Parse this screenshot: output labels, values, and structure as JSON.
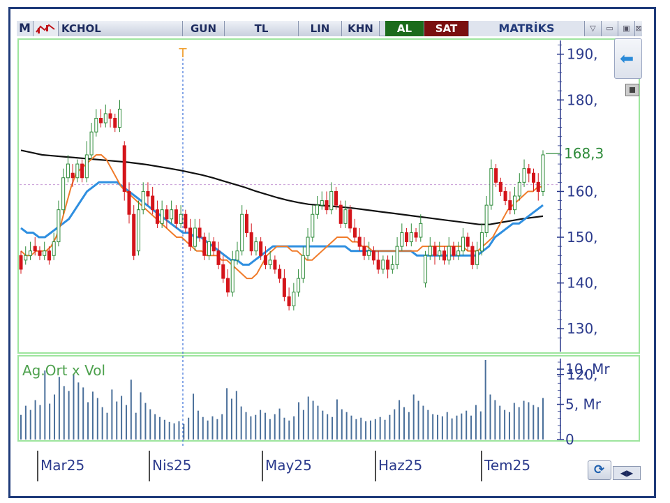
{
  "toolbar": {
    "menu": "M",
    "symbol": "KCHOL",
    "period": "GUN",
    "currency": "TL",
    "scale": "LIN",
    "khn": "KHN",
    "buy": "AL",
    "sell": "SAT",
    "brand": "MATRİKS",
    "win_dropdown": "▽",
    "win_min": "▭",
    "win_max": "▣",
    "win_close": "⊠"
  },
  "colors": {
    "up": "#2e8b3a",
    "down": "#d4141a",
    "ma_short": "#f07b2a",
    "ma_mid": "#2f8fe0",
    "ma_long": "#111111",
    "volume": "#4a6f9a",
    "axis": "#2b3a8c",
    "grid_frame": "#9ee59e",
    "last_price": "#2e8b3a",
    "marker": "#f0a030"
  },
  "icons": {
    "back": "arrow-left-icon",
    "refresh": "refresh-icon",
    "nav": "nav-arrows-icon"
  },
  "chart_data": [
    {
      "type": "candlestick",
      "symbol": "KCHOL",
      "ylim": [
        125,
        193
      ],
      "y_ticks": [
        "190,",
        "180,",
        "160,",
        "150,",
        "140,",
        "130,",
        "120,"
      ],
      "last_price_label": "168,3",
      "last_price": 168.3,
      "reference_price": 161.5,
      "marker_label": "T",
      "x_labels": [
        "Mar25",
        "Nis25",
        "May25",
        "Haz25",
        "Tem25"
      ],
      "candles": [
        [
          146,
          143,
          147,
          142
        ],
        [
          145,
          146,
          148,
          144
        ],
        [
          146,
          147,
          149,
          145
        ],
        [
          148,
          147,
          150,
          146
        ],
        [
          147,
          146,
          148,
          145
        ],
        [
          146,
          147,
          149,
          145
        ],
        [
          147,
          145,
          148,
          144
        ],
        [
          146,
          149,
          151,
          145
        ],
        [
          149,
          156,
          158,
          148
        ],
        [
          156,
          163,
          165,
          155
        ],
        [
          163,
          166,
          168,
          162
        ],
        [
          164,
          163,
          166,
          161
        ],
        [
          163,
          166,
          167,
          162
        ],
        [
          166,
          163,
          167,
          162
        ],
        [
          163,
          168,
          171,
          162
        ],
        [
          168,
          173,
          175,
          167
        ],
        [
          173,
          176,
          178,
          172
        ],
        [
          176,
          175,
          178,
          174
        ],
        [
          175,
          177,
          179,
          174
        ],
        [
          177,
          176,
          178,
          174
        ],
        [
          176,
          174,
          177,
          173
        ],
        [
          174,
          178,
          180,
          173
        ],
        [
          170,
          160,
          171,
          158
        ],
        [
          160,
          155,
          162,
          153
        ],
        [
          155,
          146,
          157,
          145
        ],
        [
          147,
          156,
          158,
          146
        ],
        [
          156,
          160,
          162,
          155
        ],
        [
          160,
          159,
          162,
          157
        ],
        [
          159,
          156,
          161,
          155
        ],
        [
          156,
          153,
          158,
          152
        ],
        [
          153,
          156,
          158,
          152
        ],
        [
          156,
          154,
          157,
          152
        ],
        [
          154,
          156,
          158,
          153
        ],
        [
          156,
          153,
          157,
          152
        ],
        [
          153,
          155,
          157,
          152
        ],
        [
          155,
          152,
          156,
          151
        ],
        [
          152,
          148,
          154,
          147
        ],
        [
          148,
          152,
          154,
          147
        ],
        [
          152,
          150,
          154,
          149
        ],
        [
          150,
          146,
          151,
          145
        ],
        [
          146,
          149,
          151,
          145
        ],
        [
          149,
          147,
          150,
          146
        ],
        [
          147,
          144,
          149,
          143
        ],
        [
          144,
          141,
          146,
          140
        ],
        [
          141,
          138,
          143,
          137
        ],
        [
          138,
          145,
          147,
          137
        ],
        [
          145,
          147,
          149,
          144
        ],
        [
          147,
          155,
          157,
          146
        ],
        [
          155,
          151,
          156,
          150
        ],
        [
          151,
          147,
          153,
          146
        ],
        [
          147,
          149,
          150,
          146
        ],
        [
          149,
          146,
          150,
          145
        ],
        [
          146,
          144,
          148,
          143
        ],
        [
          144,
          145,
          147,
          143
        ],
        [
          145,
          143,
          146,
          142
        ],
        [
          143,
          141,
          144,
          140
        ],
        [
          141,
          137,
          143,
          136
        ],
        [
          137,
          135,
          139,
          134
        ],
        [
          135,
          138,
          140,
          134
        ],
        [
          138,
          141,
          143,
          137
        ],
        [
          141,
          146,
          148,
          140
        ],
        [
          146,
          150,
          152,
          145
        ],
        [
          150,
          155,
          157,
          149
        ],
        [
          155,
          157,
          159,
          154
        ],
        [
          157,
          158,
          160,
          156
        ],
        [
          158,
          156,
          160,
          155
        ],
        [
          156,
          160,
          162,
          155
        ],
        [
          160,
          157,
          161,
          156
        ],
        [
          157,
          153,
          158,
          152
        ],
        [
          153,
          156,
          158,
          152
        ],
        [
          156,
          152,
          157,
          151
        ],
        [
          152,
          150,
          154,
          149
        ],
        [
          150,
          148,
          152,
          147
        ],
        [
          148,
          146,
          150,
          145
        ],
        [
          146,
          147,
          149,
          145
        ],
        [
          147,
          145,
          148,
          144
        ],
        [
          145,
          143,
          147,
          142
        ],
        [
          143,
          145,
          146,
          142
        ],
        [
          145,
          143,
          146,
          141
        ],
        [
          143,
          144,
          146,
          142
        ],
        [
          144,
          148,
          150,
          143
        ],
        [
          148,
          151,
          153,
          147
        ],
        [
          151,
          149,
          152,
          148
        ],
        [
          149,
          151,
          153,
          148
        ],
        [
          151,
          150,
          152,
          149
        ],
        [
          150,
          153,
          155,
          149
        ],
        [
          140,
          146,
          147,
          139
        ],
        [
          146,
          148,
          150,
          145
        ],
        [
          148,
          146,
          149,
          144
        ],
        [
          146,
          147,
          149,
          145
        ],
        [
          147,
          145,
          148,
          144
        ],
        [
          145,
          148,
          150,
          144
        ],
        [
          148,
          146,
          149,
          145
        ],
        [
          146,
          147,
          149,
          145
        ],
        [
          147,
          150,
          152,
          146
        ],
        [
          150,
          148,
          151,
          147
        ],
        [
          148,
          144,
          149,
          143
        ],
        [
          144,
          147,
          149,
          143
        ],
        [
          147,
          151,
          153,
          146
        ],
        [
          151,
          157,
          159,
          150
        ],
        [
          157,
          165,
          167,
          156
        ],
        [
          165,
          162,
          166,
          161
        ],
        [
          162,
          160,
          163,
          159
        ],
        [
          160,
          158,
          161,
          157
        ],
        [
          158,
          156,
          160,
          155
        ],
        [
          156,
          159,
          161,
          155
        ],
        [
          159,
          162,
          164,
          158
        ],
        [
          162,
          165,
          167,
          161
        ],
        [
          165,
          164,
          166,
          162
        ],
        [
          164,
          162,
          165,
          160
        ],
        [
          162,
          160,
          164,
          158
        ],
        [
          160,
          168,
          169,
          159
        ]
      ],
      "ma_short": [
        147,
        146,
        146,
        147,
        147,
        147,
        148,
        150,
        153,
        157,
        161,
        164,
        165,
        166,
        167,
        168,
        168,
        167,
        165,
        163,
        161,
        160,
        159,
        158,
        157,
        156,
        155,
        154,
        153,
        152,
        151,
        150,
        150,
        149,
        148,
        147,
        147,
        146,
        146,
        146,
        145,
        145,
        144,
        143,
        142,
        141,
        141,
        142,
        144,
        146,
        147,
        148,
        148,
        148,
        147,
        147,
        146,
        145,
        145,
        146,
        147,
        148,
        149,
        150,
        150,
        150,
        149,
        149,
        148,
        148,
        147,
        147,
        147,
        147,
        147,
        147,
        147,
        147,
        147,
        147,
        148,
        148,
        148,
        148,
        148,
        148,
        148,
        148,
        148,
        147,
        147,
        147,
        148,
        149,
        150,
        152,
        154,
        156,
        157,
        158,
        159,
        160,
        160,
        161,
        161
      ],
      "ma_mid": [
        152,
        151,
        151,
        150,
        150,
        151,
        152,
        153,
        154,
        156,
        158,
        160,
        161,
        162,
        162,
        162,
        162,
        161,
        160,
        159,
        158,
        157,
        156,
        155,
        154,
        153,
        152,
        151,
        151,
        150,
        150,
        149,
        148,
        147,
        146,
        145,
        145,
        144,
        144,
        145,
        146,
        147,
        148,
        148,
        148,
        148,
        148,
        148,
        148,
        148,
        148,
        148,
        148,
        148,
        148,
        147,
        147,
        147,
        147,
        147,
        147,
        147,
        147,
        147,
        147,
        147,
        146,
        146,
        146,
        146,
        146,
        146,
        146,
        146,
        146,
        146,
        146,
        147,
        148,
        150,
        151,
        152,
        153,
        153,
        154,
        155,
        156,
        157
      ],
      "ma_long": [
        169,
        168.5,
        168,
        167.8,
        167.6,
        167.4,
        167.2,
        167,
        166.8,
        166.6,
        166.4,
        166.1,
        165.8,
        165.4,
        165,
        164.6,
        164.1,
        163.6,
        163,
        162.3,
        161.6,
        160.9,
        160.1,
        159.4,
        158.7,
        158.1,
        157.6,
        157.2,
        157,
        156.8,
        156.6,
        156.4,
        156.1,
        155.8,
        155.5,
        155.2,
        154.9,
        154.6,
        154.3,
        154,
        153.7,
        153.4,
        153.1,
        152.8,
        152.8,
        153.2,
        153.6,
        154,
        154.3,
        154.6
      ],
      "volume": {
        "y_ticks": [
          "10, Mr",
          "5, Mr",
          "0"
        ],
        "ylim": [
          0,
          11.5
        ],
        "series_label": "Ag.Ort x Vol",
        "values": [
          3.5,
          4.8,
          4.2,
          5.6,
          4.9,
          9.8,
          5.1,
          6.4,
          8.9,
          7.6,
          6.9,
          9.2,
          8.1,
          7.4,
          5.3,
          6.8,
          5.9,
          4.6,
          3.8,
          7.1,
          5.4,
          6.2,
          4.9,
          8.5,
          3.8,
          6.7,
          5.2,
          4.3,
          3.6,
          3.2,
          2.8,
          2.5,
          2.3,
          2.6,
          2.2,
          3.1,
          6.5,
          4.1,
          3.2,
          2.7,
          3.3,
          2.9,
          3.6,
          7.3,
          5.8,
          6.9,
          4.7,
          3.9,
          3.3,
          3.5,
          4.2,
          3.8,
          2.9,
          3.6,
          4.4,
          3.1,
          2.7,
          3.3,
          5.3,
          4.2,
          6.1,
          5.5,
          4.8,
          4.1,
          3.6,
          3.2,
          5.7,
          4.3,
          3.9,
          3.4,
          2.9,
          3.1,
          2.6,
          2.7,
          2.9,
          3.2,
          2.8,
          3.5,
          4.3,
          5.6,
          4.6,
          3.9,
          6.4,
          5.5,
          4.8,
          4.2,
          3.6,
          3.5,
          3.3,
          3.9,
          3.0,
          3.4,
          3.7,
          4.1,
          3.4,
          4.9,
          4.0,
          11.3,
          6.4,
          5.6,
          4.8,
          4.2,
          3.9,
          5.2,
          4.6,
          5.5,
          5.3,
          4.9,
          4.6,
          5.9
        ]
      }
    }
  ]
}
